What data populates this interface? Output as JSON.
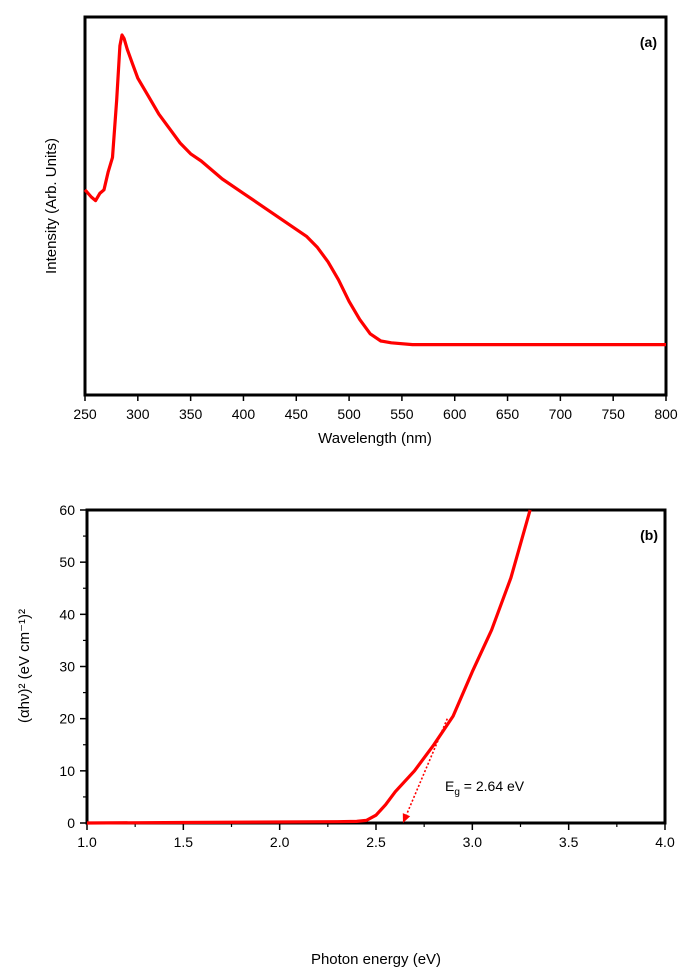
{
  "colors": {
    "curve": "#ff0000",
    "axis": "#000000",
    "background": "#ffffff"
  },
  "chart_data": [
    {
      "type": "line",
      "panel_label": "(a)",
      "xlabel": "Wavelength (nm)",
      "ylabel": "Intensity (Arb. Units)",
      "xlim": [
        250,
        800
      ],
      "ylim": [
        0,
        1.05
      ],
      "xticks": [
        "250",
        "300",
        "350",
        "400",
        "450",
        "500",
        "550",
        "600",
        "650",
        "700",
        "750",
        "800"
      ],
      "y_tick_labels_shown": false,
      "grid": false,
      "series": [
        {
          "x": [
            250,
            256,
            260,
            264,
            268,
            272,
            276,
            280,
            283,
            285,
            287,
            290,
            295,
            300,
            310,
            320,
            330,
            340,
            350,
            360,
            380,
            400,
            420,
            440,
            460,
            470,
            480,
            490,
            500,
            510,
            520,
            530,
            540,
            560,
            600,
            650,
            700,
            750,
            800
          ],
          "y": [
            0.57,
            0.55,
            0.54,
            0.56,
            0.57,
            0.62,
            0.66,
            0.82,
            0.97,
            1.0,
            0.99,
            0.96,
            0.92,
            0.88,
            0.83,
            0.78,
            0.74,
            0.7,
            0.67,
            0.65,
            0.6,
            0.56,
            0.52,
            0.48,
            0.44,
            0.41,
            0.37,
            0.32,
            0.26,
            0.21,
            0.17,
            0.15,
            0.145,
            0.14,
            0.14,
            0.14,
            0.14,
            0.14,
            0.14
          ]
        }
      ]
    },
    {
      "type": "line",
      "panel_label": "(b)",
      "xlabel": "Photon energy (eV)",
      "ylabel": "(αhν)² (eV cm⁻¹)²",
      "xlim": [
        1.0,
        4.0
      ],
      "ylim": [
        0,
        60
      ],
      "xticks": [
        "1.0",
        "1.5",
        "2.0",
        "2.5",
        "3.0",
        "3.5",
        "4.0"
      ],
      "yticks": [
        "0",
        "10",
        "20",
        "30",
        "40",
        "50",
        "60"
      ],
      "grid": false,
      "series": [
        {
          "x": [
            1.0,
            1.5,
            2.0,
            2.3,
            2.4,
            2.45,
            2.5,
            2.55,
            2.6,
            2.7,
            2.8,
            2.9,
            3.0,
            3.1,
            3.2,
            3.3
          ],
          "y": [
            0,
            0.1,
            0.2,
            0.25,
            0.3,
            0.5,
            1.5,
            3.5,
            6,
            10,
            15,
            20.5,
            29,
            37,
            47,
            60
          ]
        }
      ],
      "annotation": {
        "text_main": "E",
        "text_sub": "g",
        "text_rest": " = 2.64 eV",
        "arrow_from": [
          2.87,
          20
        ],
        "arrow_to": [
          2.64,
          0
        ]
      }
    }
  ]
}
